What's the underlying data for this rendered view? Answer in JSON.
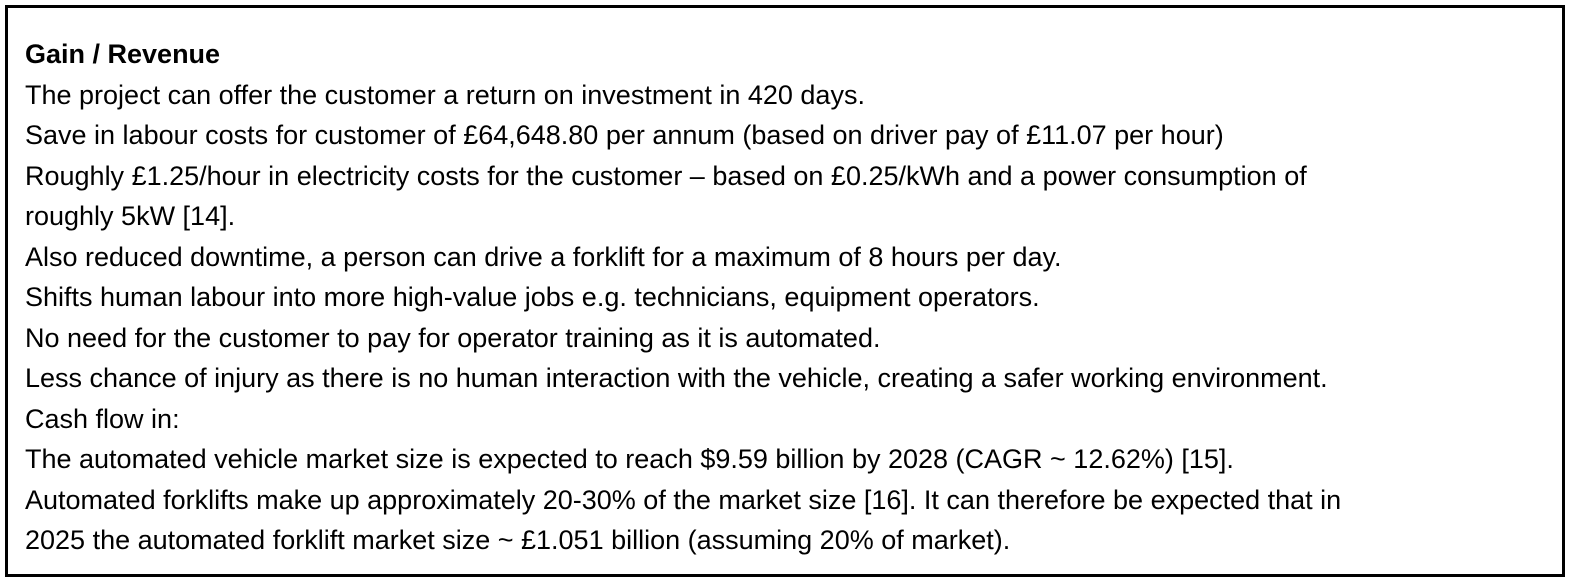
{
  "heading": "Gain / Revenue",
  "lines": [
    "The project can offer the customer a return on investment in 420 days.",
    "Save in labour costs for customer of £64,648.80 per annum (based on driver pay of £11.07 per hour)",
    "Roughly £1.25/hour in electricity costs for the customer – based on £0.25/kWh and a power consumption of",
    "roughly 5kW [14].",
    "Also reduced downtime, a person can drive a forklift for a maximum of 8 hours per day.",
    "Shifts human labour into more high-value jobs e.g. technicians, equipment operators.",
    "No need for the customer to pay for operator training as it is automated.",
    "Less chance of injury as there is no human interaction with the vehicle, creating a safer working environment.",
    "Cash flow in:",
    "The automated vehicle market size is expected to reach $9.59 billion by 2028 (CAGR ~ 12.62%) [15].",
    "Automated forklifts make up approximately 20-30% of the market size [16]. It can therefore be expected that in",
    "2025 the automated forklift market size ~ £1.051 billion (assuming 20% of market)."
  ]
}
